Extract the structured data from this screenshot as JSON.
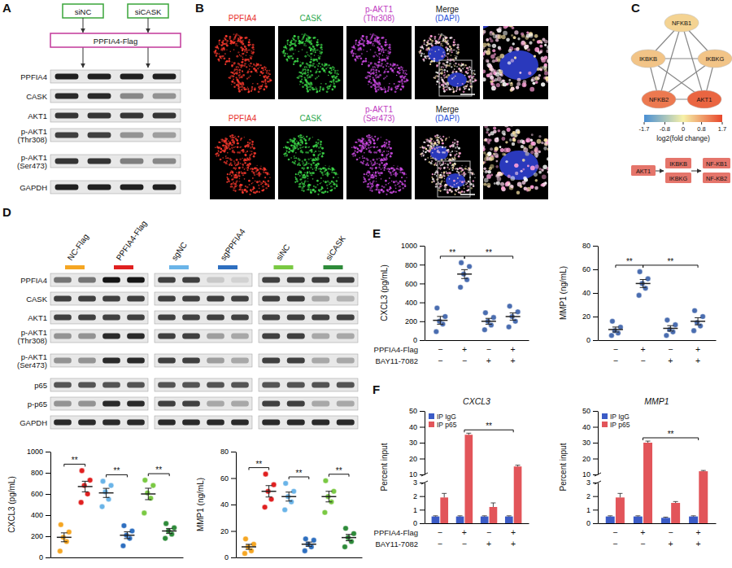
{
  "panels": {
    "A": {
      "label": "A",
      "conditions": [
        "siNC",
        "siCASK"
      ],
      "construct": "PPFIA4-Flag",
      "blot": {
        "rows": [
          {
            "label": [
              "PPFIA4"
            ],
            "intensity": [
              0.95,
              0.95,
              0.95,
              0.95
            ]
          },
          {
            "label": [
              "CASK"
            ],
            "intensity": [
              0.9,
              0.9,
              0.45,
              0.4
            ]
          },
          {
            "label": [
              "AKT1"
            ],
            "intensity": [
              0.85,
              0.85,
              0.85,
              0.85
            ]
          },
          {
            "label": [
              "p-AKT1",
              "(Thr308)"
            ],
            "intensity": [
              0.8,
              0.8,
              0.4,
              0.35
            ]
          },
          {
            "label": [
              "p-AKT1",
              "(Ser473)"
            ],
            "intensity": [
              0.85,
              0.85,
              0.5,
              0.45
            ]
          },
          {
            "label": [
              "GAPDH"
            ],
            "intensity": [
              0.95,
              0.95,
              0.95,
              0.95
            ]
          }
        ]
      }
    },
    "B": {
      "label": "B",
      "rows": [
        {
          "headers": [
            [
              "PPFIA4"
            ],
            [
              "CASK"
            ],
            [
              "p-AKT1",
              "(Thr308)"
            ],
            [
              "Merge",
              "(DAPI)"
            ]
          ]
        },
        {
          "headers": [
            [
              "PPFIA4"
            ],
            [
              "CASK"
            ],
            [
              "p-AKT1",
              "(Ser473)"
            ],
            [
              "Merge",
              "(DAPI)"
            ]
          ]
        }
      ]
    },
    "C": {
      "label": "C",
      "network": {
        "nodes": [
          {
            "label": "NFKB1",
            "value": 0.3
          },
          {
            "label": "IKBKB",
            "value": 0.45
          },
          {
            "label": "IKBKG",
            "value": 0.45
          },
          {
            "label": "NFKB2",
            "value": 1.2
          },
          {
            "label": "AKT1",
            "value": 1.4
          }
        ],
        "edges": [
          [
            0,
            1
          ],
          [
            0,
            2
          ],
          [
            0,
            3
          ],
          [
            0,
            4
          ],
          [
            1,
            2
          ],
          [
            1,
            3
          ],
          [
            1,
            4
          ],
          [
            2,
            3
          ],
          [
            2,
            4
          ],
          [
            3,
            4
          ]
        ]
      },
      "colorbar": {
        "range": [
          -1.7,
          1.7
        ],
        "ticks": [
          -1.7,
          -0.8,
          0,
          0.8,
          1.7
        ],
        "label": "log2(fold change)"
      },
      "pathway": [
        "AKT1",
        "IKBKB",
        "IKBKG",
        "NF-KB1",
        "NF-KB2"
      ]
    },
    "D": {
      "label": "D",
      "conditions": [
        "NC-Flag",
        "PPFIA4-Flag",
        "sgNC",
        "sgPPFIA4",
        "siNC",
        "siCASK"
      ],
      "blot": {
        "rows": [
          {
            "label": [
              "PPFIA4"
            ],
            "intensity": [
              0.55,
              0.55,
              1,
              1,
              0.8,
              0.8,
              0.15,
              0.1,
              0.8,
              0.8,
              0.8,
              0.8
            ]
          },
          {
            "label": [
              "CASK"
            ],
            "intensity": [
              0.8,
              0.8,
              0.8,
              0.8,
              0.8,
              0.8,
              0.8,
              0.8,
              0.8,
              0.8,
              0.3,
              0.25
            ]
          },
          {
            "label": [
              "AKT1"
            ],
            "intensity": [
              0.8,
              0.8,
              0.8,
              0.8,
              0.8,
              0.8,
              0.8,
              0.8,
              0.8,
              0.8,
              0.8,
              0.8
            ]
          },
          {
            "label": [
              "p-AKT1",
              "(Thr308)"
            ],
            "intensity": [
              0.4,
              0.4,
              0.9,
              0.9,
              0.8,
              0.8,
              0.35,
              0.3,
              0.8,
              0.8,
              0.3,
              0.3
            ]
          },
          {
            "label": [
              "p-AKT1",
              "(Ser473)"
            ],
            "intensity": [
              0.4,
              0.4,
              0.9,
              0.9,
              0.8,
              0.8,
              0.35,
              0.3,
              0.8,
              0.8,
              0.3,
              0.3
            ]
          },
          {
            "label": [
              "p65"
            ],
            "intensity": [
              0.7,
              0.7,
              0.7,
              0.7,
              0.7,
              0.7,
              0.7,
              0.7,
              0.7,
              0.7,
              0.7,
              0.7
            ]
          },
          {
            "label": [
              "p-p65"
            ],
            "intensity": [
              0.4,
              0.4,
              0.9,
              0.9,
              0.8,
              0.8,
              0.3,
              0.3,
              0.8,
              0.8,
              0.3,
              0.3
            ]
          },
          {
            "label": [
              "GAPDH"
            ],
            "intensity": [
              0.9,
              0.9,
              0.9,
              0.9,
              0.9,
              0.9,
              0.9,
              0.9,
              0.9,
              0.9,
              0.9,
              0.9
            ]
          }
        ]
      }
    },
    "E": {
      "label": "E",
      "conditions": [
        {
          "name": "PPFIA4-Flag",
          "signs": [
            "−",
            "+",
            "−",
            "+"
          ]
        },
        {
          "name": "BAY11-7082",
          "signs": [
            "−",
            "−",
            "+",
            "+"
          ]
        }
      ]
    },
    "F": {
      "label": "F",
      "conditions": [
        {
          "name": "PPFIA4-Flag",
          "signs": [
            "−",
            "+",
            "−",
            "+"
          ]
        },
        {
          "name": "BAY11-7082",
          "signs": [
            "−",
            "−",
            "+",
            "+"
          ]
        }
      ]
    }
  },
  "chart_data": [
    {
      "type": "strip",
      "y_label": "CXCL3 (pg/mL)",
      "categories": [
        null,
        null,
        null,
        null,
        null,
        null
      ],
      "values": [
        [
          60,
          150,
          190,
          240,
          310
        ],
        [
          520,
          600,
          680,
          730,
          820
        ],
        [
          480,
          550,
          620,
          680,
          720
        ],
        [
          110,
          180,
          210,
          250,
          300
        ],
        [
          420,
          560,
          610,
          680,
          730
        ],
        [
          180,
          220,
          250,
          280,
          320
        ]
      ],
      "means": [
        190,
        670,
        610,
        210,
        600,
        250
      ],
      "errors": [
        42,
        50,
        43,
        32,
        54,
        24
      ],
      "colors": [
        "#f5a623",
        "#e02020",
        "#6ab4e8",
        "#2e6fc0",
        "#7ac943",
        "#2e8b3a"
      ],
      "ylim": [
        0,
        1000
      ],
      "yticks": [
        0,
        200,
        400,
        600,
        800,
        1000
      ],
      "tick_labels": "y",
      "annotations": [
        {
          "text": "**",
          "groups": [
            0,
            1
          ]
        },
        {
          "text": "**",
          "groups": [
            2,
            3
          ]
        },
        {
          "text": "**",
          "groups": [
            4,
            5
          ]
        }
      ]
    },
    {
      "type": "strip",
      "y_label": "MMP1 (ng/mL)",
      "categories": [
        null,
        null,
        null,
        null,
        null,
        null
      ],
      "values": [
        [
          3,
          5,
          8,
          10,
          14
        ],
        [
          38,
          44,
          50,
          55,
          63
        ],
        [
          36,
          42,
          46,
          50,
          56
        ],
        [
          5,
          8,
          10,
          13,
          14
        ],
        [
          34,
          42,
          46,
          50,
          58
        ],
        [
          8,
          12,
          15,
          18,
          22
        ]
      ],
      "means": [
        8,
        50,
        46,
        10,
        46,
        15
      ],
      "errors": [
        1.9,
        4.3,
        3.4,
        1.6,
        4,
        2.4
      ],
      "colors": [
        "#f5a623",
        "#e02020",
        "#6ab4e8",
        "#2e6fc0",
        "#7ac943",
        "#2e8b3a"
      ],
      "ylim": [
        0,
        80
      ],
      "yticks": [
        0,
        20,
        40,
        60,
        80
      ],
      "tick_labels": "y",
      "annotations": [
        {
          "text": "**",
          "groups": [
            0,
            1
          ]
        },
        {
          "text": "**",
          "groups": [
            2,
            3
          ]
        },
        {
          "text": "**",
          "groups": [
            4,
            5
          ]
        }
      ]
    },
    {
      "type": "strip",
      "y_label": "CXCL3 (pg/mL)",
      "categories": [
        null,
        null,
        null,
        null
      ],
      "values": [
        [
          90,
          170,
          200,
          250,
          340
        ],
        [
          560,
          640,
          700,
          780,
          820
        ],
        [
          110,
          160,
          200,
          240,
          290
        ],
        [
          140,
          200,
          250,
          300,
          360
        ]
      ],
      "means": [
        210,
        700,
        200,
        250
      ],
      "errors": [
        41,
        47,
        31,
        38
      ],
      "color": "#4a6db0",
      "ylim": [
        0,
        1000
      ],
      "yticks": [
        0,
        200,
        400,
        600,
        800,
        1000
      ],
      "tick_labels": "y",
      "annotations": [
        {
          "text": "**",
          "groups": [
            0,
            1
          ]
        },
        {
          "text": "**",
          "groups": [
            1,
            3
          ]
        }
      ]
    },
    {
      "type": "strip",
      "y_label": "MMP1 (ng/mL)",
      "categories": [
        null,
        null,
        null,
        null
      ],
      "values": [
        [
          4,
          6,
          8,
          11,
          16
        ],
        [
          38,
          44,
          48,
          52,
          58
        ],
        [
          4,
          7,
          9,
          13,
          17
        ],
        [
          8,
          12,
          15,
          20,
          25
        ]
      ],
      "means": [
        9,
        48,
        10,
        16
      ],
      "errors": [
        2.1,
        3.4,
        2.3,
        3
      ],
      "color": "#4a6db0",
      "ylim": [
        0,
        80
      ],
      "yticks": [
        0,
        20,
        40,
        60,
        80
      ],
      "tick_labels": "y",
      "annotations": [
        {
          "text": "**",
          "groups": [
            0,
            1
          ]
        },
        {
          "text": "**",
          "groups": [
            1,
            3
          ]
        }
      ]
    },
    {
      "type": "bar",
      "title": "CXCL3",
      "y_label": "Percent input",
      "categories": [
        null,
        null,
        null,
        null
      ],
      "series": [
        {
          "name": "IP IgG",
          "color": "#3b5bc6",
          "values": [
            0.5,
            0.5,
            0.5,
            0.5
          ],
          "errors": [
            0.05,
            0.05,
            0.05,
            0.05
          ]
        },
        {
          "name": "IP p65",
          "color": "#e2555a",
          "values": [
            1.9,
            35,
            1.2,
            15
          ],
          "errors": [
            0.3,
            1,
            0.3,
            0.8
          ]
        }
      ],
      "ylim": [
        0,
        50
      ],
      "y_break": [
        3,
        10
      ],
      "yticks": [
        0,
        1,
        2,
        3,
        10,
        20,
        30,
        40,
        50
      ],
      "legend": "top-left",
      "tick_labels": "y",
      "annotations": [
        {
          "text": "**",
          "groups": [
            1,
            3
          ]
        }
      ]
    },
    {
      "type": "bar",
      "title": "MMP1",
      "y_label": "Percent input",
      "categories": [
        null,
        null,
        null,
        null
      ],
      "series": [
        {
          "name": "IP IgG",
          "color": "#3b5bc6",
          "values": [
            0.5,
            0.5,
            0.4,
            0.5
          ],
          "errors": [
            0.05,
            0.05,
            0.05,
            0.05
          ]
        },
        {
          "name": "IP p65",
          "color": "#e2555a",
          "values": [
            1.9,
            30,
            1.5,
            12
          ],
          "errors": [
            0.3,
            1,
            0.1,
            0.5
          ]
        }
      ],
      "ylim": [
        0,
        50
      ],
      "y_break": [
        3,
        10
      ],
      "yticks": [
        0,
        1,
        2,
        3,
        10,
        20,
        30,
        40,
        50
      ],
      "legend": "top-left",
      "tick_labels": "y",
      "annotations": [
        {
          "text": "**",
          "groups": [
            1,
            3
          ]
        }
      ]
    }
  ]
}
